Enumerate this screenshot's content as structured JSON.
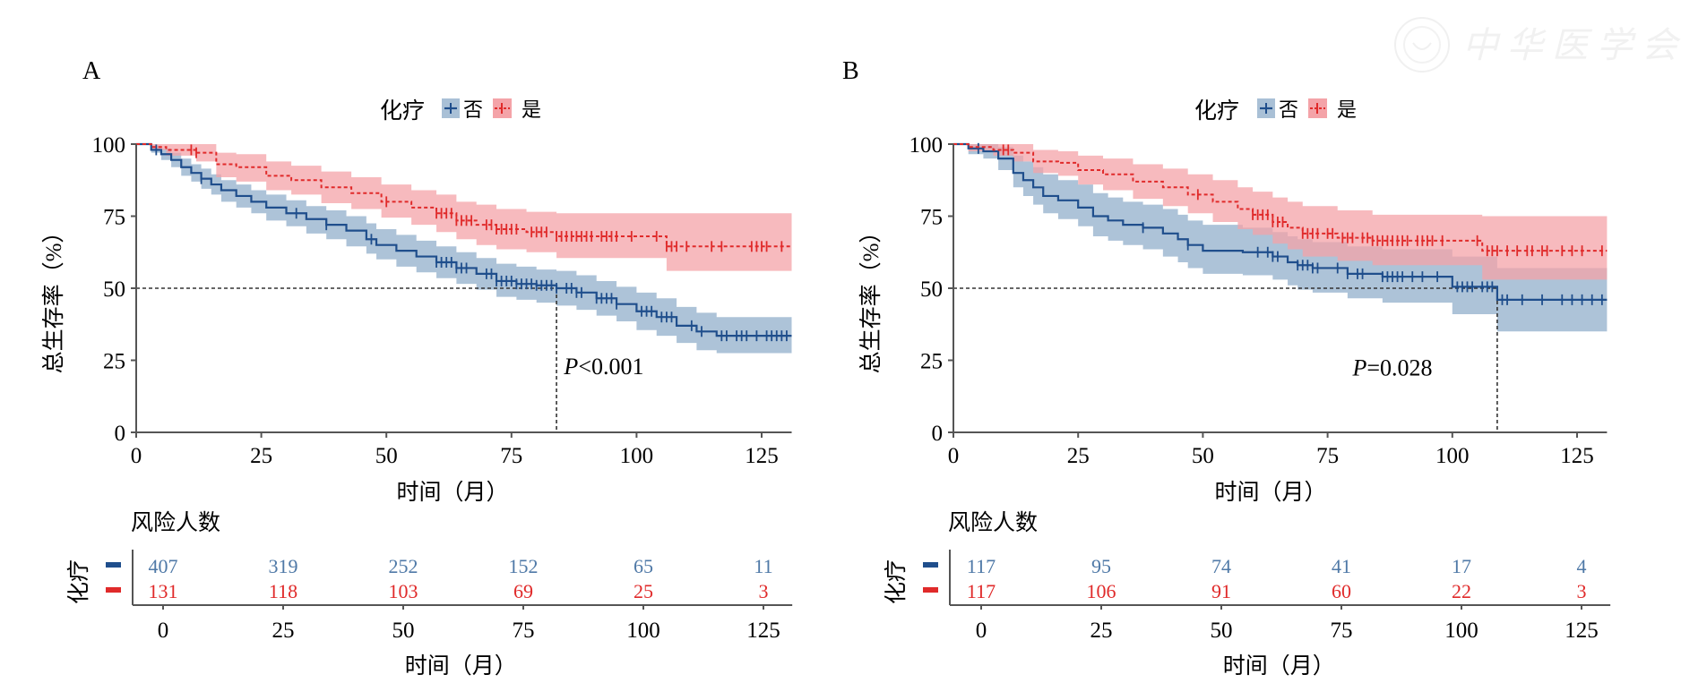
{
  "watermark": {
    "text": "中华医学会"
  },
  "colors": {
    "no": "#1f4e8c",
    "no_band": "#a9c0d6",
    "yes": "#e02a2a",
    "yes_band": "#f4a3a8",
    "ref": "#333333",
    "axis": "#555555"
  },
  "chart_data": [
    {
      "panel": "A",
      "type": "line",
      "subtype": "kaplan-meier",
      "title": "",
      "legend": {
        "title": "化疗",
        "placement": "top-center",
        "entries": [
          "否",
          "是"
        ]
      },
      "xlabel": "时间（月）",
      "ylabel": "总生存率（%）",
      "xlim": [
        0,
        131
      ],
      "ylim": [
        0,
        100
      ],
      "xticks": [
        0,
        25,
        50,
        75,
        100,
        125
      ],
      "yticks": [
        0,
        25,
        50,
        75,
        100
      ],
      "grid": false,
      "reference_lines": {
        "y": 50,
        "median_x": 84
      },
      "annotation": {
        "text": "P<0.001",
        "x": 85.5,
        "y": 23
      },
      "series": [
        {
          "name": "否",
          "style": "solid",
          "x": [
            0,
            3,
            5,
            7,
            9,
            11,
            13,
            15,
            17,
            20,
            23,
            26,
            30,
            34,
            38,
            42,
            46,
            48,
            52,
            56,
            60,
            64,
            68,
            72,
            76,
            80,
            84,
            88,
            92,
            96,
            100,
            104,
            108,
            112,
            116,
            131
          ],
          "y": [
            100,
            98,
            96.5,
            94.5,
            92,
            90,
            88,
            86,
            84,
            82,
            80,
            78,
            76,
            74,
            72,
            70,
            67,
            65,
            63,
            61,
            59,
            57,
            55,
            52.5,
            51.5,
            51,
            50,
            48.5,
            46.5,
            44.5,
            42,
            40,
            37,
            35,
            33.5,
            33.5
          ],
          "ci_lower": [
            100,
            97,
            94.5,
            92,
            89,
            87,
            84.5,
            82.5,
            80,
            78,
            76,
            73.5,
            71.5,
            69,
            67,
            64.5,
            62,
            60,
            57.5,
            55.5,
            53.5,
            51.5,
            49.5,
            47,
            46,
            45,
            44,
            42.5,
            40.5,
            38.5,
            35.5,
            33.5,
            31,
            28.5,
            27.5,
            27.5
          ],
          "ci_upper": [
            100,
            99.5,
            98.5,
            97,
            95,
            93,
            91.5,
            89.5,
            87.5,
            86,
            84,
            82.5,
            80.5,
            78.5,
            77,
            75,
            72.5,
            70.5,
            68.5,
            66.5,
            64.5,
            62.5,
            60.5,
            58.5,
            57.5,
            56.5,
            56,
            54.5,
            52.5,
            50.5,
            48.5,
            46.5,
            43.5,
            41.5,
            40,
            40
          ],
          "censor_x": [
            4,
            13,
            32,
            38,
            47,
            60,
            61,
            62,
            63,
            64,
            65,
            66,
            70,
            71,
            72,
            73,
            74,
            75,
            76,
            77,
            78,
            79,
            80,
            81,
            82,
            83,
            84,
            86,
            87,
            88,
            89,
            92,
            93,
            94,
            95,
            96,
            101,
            102,
            103,
            105,
            106,
            107,
            111,
            113,
            117,
            118,
            120,
            121,
            122,
            124,
            126,
            127,
            128,
            129,
            130
          ]
        },
        {
          "name": "是",
          "style": "dashed",
          "x": [
            0,
            3,
            6,
            12,
            16,
            20,
            26,
            31,
            37,
            43,
            49,
            55,
            60,
            64,
            68,
            72,
            78,
            84,
            96,
            105,
            106,
            131
          ],
          "y": [
            100,
            99,
            98,
            97,
            93,
            92,
            89,
            87.5,
            85,
            83,
            80,
            78,
            76,
            73.5,
            72,
            70.5,
            69.5,
            68,
            68,
            68,
            64.5,
            64.5
          ],
          "ci_lower": [
            100,
            98,
            96,
            94,
            88.5,
            87,
            84,
            82.5,
            79.5,
            77.5,
            74.5,
            72,
            69.5,
            67,
            65,
            63.5,
            62.5,
            60.5,
            60.5,
            60.5,
            56,
            56
          ],
          "ci_upper": [
            100,
            100,
            100,
            100,
            97,
            96.5,
            94,
            92.5,
            90.5,
            88.5,
            86,
            84,
            82.5,
            80,
            79,
            77.5,
            76.5,
            76,
            76,
            76,
            76,
            76
          ],
          "censor_x": [
            11,
            12,
            50,
            60,
            61,
            62,
            63,
            64,
            65,
            66,
            67,
            70,
            71,
            72,
            73,
            74,
            75,
            76,
            79,
            80,
            81,
            82,
            84,
            85,
            86,
            87,
            88,
            89,
            90,
            91,
            93,
            94,
            95,
            96,
            99,
            104,
            106,
            107,
            108,
            110,
            115,
            117,
            123,
            124,
            125,
            126,
            129
          ]
        }
      ],
      "risk_table": {
        "title": "风险人数",
        "group_label": "化疗",
        "times": [
          0,
          25,
          50,
          75,
          100,
          125
        ],
        "rows": [
          {
            "name": "否",
            "values": [
              407,
              319,
              252,
              152,
              65,
              11
            ]
          },
          {
            "name": "是",
            "values": [
              131,
              118,
              103,
              69,
              25,
              3
            ]
          }
        ],
        "xlabel": "时间（月）"
      }
    },
    {
      "panel": "B",
      "type": "line",
      "subtype": "kaplan-meier",
      "title": "",
      "legend": {
        "title": "化疗",
        "placement": "top-center",
        "entries": [
          "否",
          "是"
        ]
      },
      "xlabel": "时间（月）",
      "ylabel": "总生存率（%）",
      "xlim": [
        0,
        131
      ],
      "ylim": [
        0,
        100
      ],
      "xticks": [
        0,
        25,
        50,
        75,
        100,
        125
      ],
      "yticks": [
        0,
        25,
        50,
        75,
        100
      ],
      "grid": false,
      "reference_lines": {
        "y": 50,
        "median_x": 109
      },
      "annotation": {
        "text": "P=0.028",
        "x": 80,
        "y": 22.5
      },
      "series": [
        {
          "name": "否",
          "style": "solid",
          "x": [
            0,
            3,
            6,
            9,
            12,
            14,
            16,
            18,
            21,
            25,
            28,
            31,
            34,
            38,
            42,
            45,
            47,
            50,
            58,
            64,
            67,
            69,
            72,
            79,
            86,
            100,
            109,
            131
          ],
          "y": [
            100,
            98.5,
            97.5,
            95,
            90,
            87.5,
            85,
            82,
            80.5,
            78,
            75,
            73.5,
            72,
            71,
            69,
            67,
            65,
            63,
            62.5,
            61,
            59,
            58,
            57,
            55,
            54,
            50.5,
            46,
            46
          ],
          "ci_lower": [
            100,
            96.5,
            95,
            91,
            85,
            82,
            79,
            76,
            74,
            71.5,
            68,
            66.5,
            65,
            63.5,
            61,
            59,
            57,
            55,
            54.5,
            53,
            51,
            49.5,
            48.5,
            46.5,
            45,
            41,
            35,
            35
          ],
          "ci_upper": [
            100,
            100,
            100,
            99,
            96,
            94,
            92,
            89.5,
            87.5,
            86,
            83,
            81.5,
            80,
            79,
            77.5,
            75.5,
            73.5,
            72,
            71,
            69.5,
            68,
            67,
            66,
            64.5,
            63.5,
            61,
            57,
            57
          ],
          "censor_x": [
            5,
            38,
            47,
            61,
            63,
            64,
            65,
            69,
            70,
            71,
            72,
            73,
            77,
            79,
            81,
            82,
            86,
            87,
            88,
            89,
            90,
            92,
            94,
            97,
            101,
            102,
            103,
            104,
            106,
            107,
            108,
            110,
            111,
            114,
            118,
            122,
            124,
            126,
            128,
            130
          ],
          "censor_note": "approximate"
        },
        {
          "name": "是",
          "style": "dashed",
          "x": [
            0,
            3,
            8,
            12,
            16,
            21,
            25,
            30,
            36,
            42,
            47,
            52,
            57,
            60,
            64,
            67,
            70,
            77,
            84,
            100,
            106,
            131
          ],
          "y": [
            100,
            99,
            98,
            97,
            94,
            93.5,
            91,
            89.5,
            87,
            85,
            82.5,
            80,
            77.5,
            75.5,
            73,
            71,
            69,
            67.5,
            66.5,
            66.5,
            63,
            63
          ],
          "ci_lower": [
            100,
            97.5,
            96,
            94,
            90,
            89,
            86,
            84,
            81,
            78.5,
            76,
            73,
            70.5,
            68.5,
            65.5,
            63.5,
            61,
            59.5,
            58,
            58,
            53,
            53
          ],
          "ci_upper": [
            100,
            100,
            100,
            100,
            98,
            97.5,
            96,
            95,
            93,
            91.5,
            89.5,
            87.5,
            85,
            83.5,
            81.5,
            80,
            78.5,
            77,
            75.5,
            75.5,
            75,
            75
          ],
          "censor_x": [
            10,
            11,
            49,
            60,
            61,
            62,
            63,
            64,
            65,
            66,
            70,
            71,
            72,
            73,
            75,
            76,
            78,
            79,
            80,
            82,
            83,
            84,
            85,
            86,
            87,
            88,
            89,
            90,
            91,
            93,
            94,
            95,
            96,
            98,
            105,
            107,
            108,
            109,
            111,
            113,
            115,
            116,
            118,
            119,
            122,
            124,
            126,
            130
          ]
        }
      ],
      "risk_table": {
        "title": "风险人数",
        "group_label": "化疗",
        "times": [
          0,
          25,
          50,
          75,
          100,
          125
        ],
        "rows": [
          {
            "name": "否",
            "values": [
              117,
              95,
              74,
              41,
              17,
              4
            ]
          },
          {
            "name": "是",
            "values": [
              117,
              106,
              91,
              60,
              22,
              3
            ]
          }
        ],
        "xlabel": "时间（月）"
      }
    }
  ]
}
